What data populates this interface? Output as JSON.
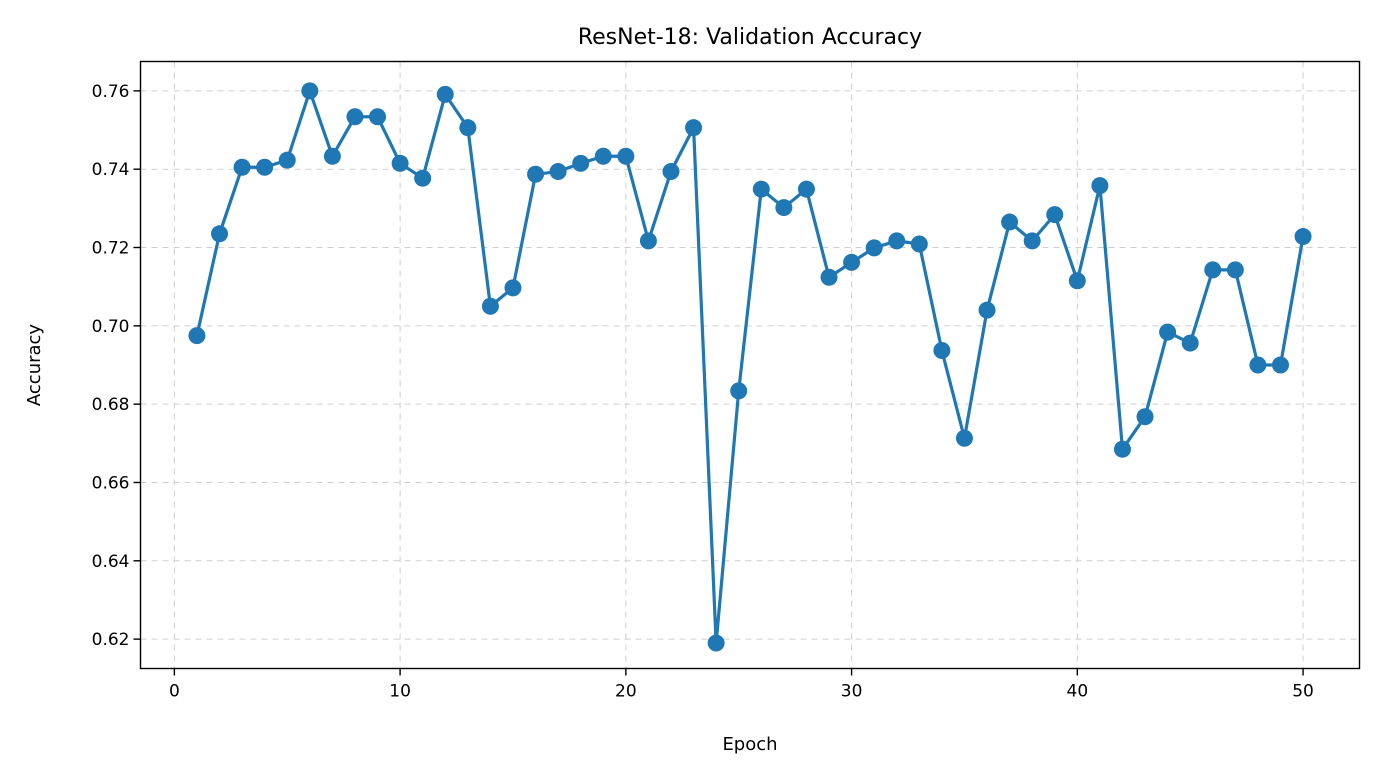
{
  "chart_data": {
    "type": "line",
    "title": "ResNet-18: Validation Accuracy",
    "xlabel": "Epoch",
    "ylabel": "Accuracy",
    "xlim": [
      -1.5,
      52.5
    ],
    "ylim": [
      0.6125,
      0.7675
    ],
    "xticks": [
      0,
      10,
      20,
      30,
      40,
      50
    ],
    "xtick_labels": [
      "0",
      "10",
      "20",
      "30",
      "40",
      "50"
    ],
    "yticks": [
      0.62,
      0.64,
      0.66,
      0.68,
      0.7,
      0.72,
      0.74,
      0.76
    ],
    "ytick_labels": [
      "0.62",
      "0.64",
      "0.66",
      "0.68",
      "0.70",
      "0.72",
      "0.74",
      "0.76"
    ],
    "grid": true,
    "color": "#1f77b4",
    "marker": "circle",
    "series": [
      {
        "x": [
          1,
          2,
          3,
          4,
          5,
          6,
          7,
          8,
          9,
          10,
          11,
          12,
          13,
          14,
          15,
          16,
          17,
          18,
          19,
          20,
          21,
          22,
          23,
          24,
          25,
          26,
          27,
          28,
          29,
          30,
          31,
          32,
          33,
          34,
          35,
          36,
          37,
          38,
          39,
          40,
          41,
          42,
          43,
          44,
          45,
          46,
          47,
          48,
          49,
          50
        ],
        "values": [
          0.6975,
          0.7235,
          0.7405,
          0.7405,
          0.7423,
          0.76,
          0.7433,
          0.7534,
          0.7534,
          0.7415,
          0.7377,
          0.7591,
          0.7506,
          0.705,
          0.7097,
          0.7387,
          0.7394,
          0.7415,
          0.7433,
          0.7433,
          0.7217,
          0.7394,
          0.7506,
          0.619,
          0.6834,
          0.7349,
          0.7302,
          0.7349,
          0.7124,
          0.7162,
          0.7199,
          0.7217,
          0.7209,
          0.6937,
          0.6713,
          0.704,
          0.7265,
          0.7217,
          0.7284,
          0.7115,
          0.7358,
          0.6685,
          0.6768,
          0.6984,
          0.6956,
          0.7143,
          0.7143,
          0.69,
          0.69,
          0.7228
        ]
      }
    ]
  }
}
